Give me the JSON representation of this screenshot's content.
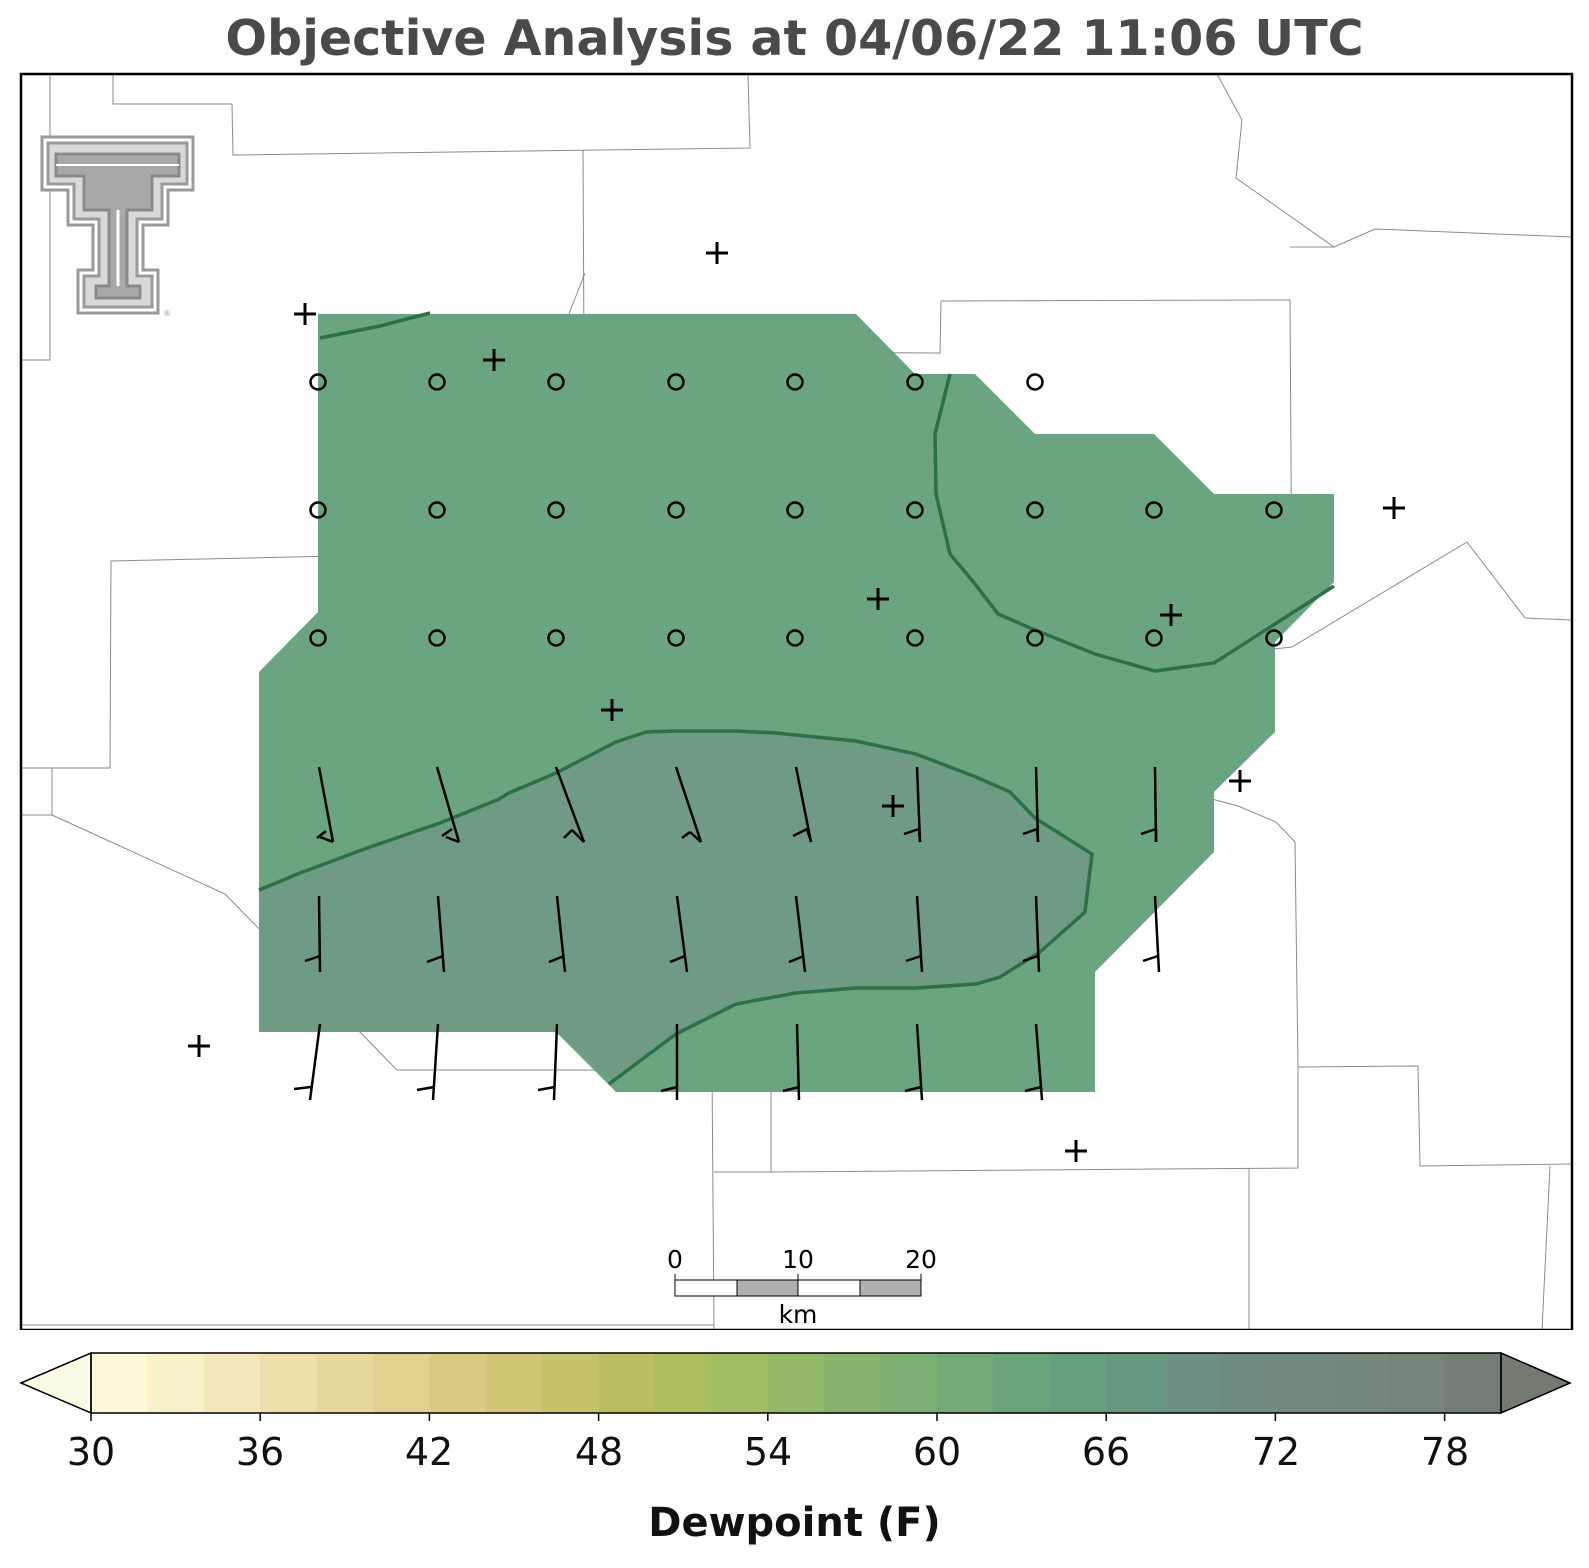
{
  "title": "Objective Analysis at 04/06/22 11:06 UTC",
  "colorbar": {
    "label": "Dewpoint (F)",
    "ticks": [
      "30",
      "36",
      "42",
      "48",
      "54",
      "60",
      "66",
      "72",
      "78"
    ],
    "min": 30,
    "max": 80,
    "step": 2,
    "colors": [
      "#fdf9d8",
      "#f8f1c9",
      "#f3e8ba",
      "#ede0ab",
      "#e7d89d",
      "#e1d090",
      "#d9ca82",
      "#d0c676",
      "#c5c26c",
      "#b9c063",
      "#acbf5c",
      "#a0bd62",
      "#94b868",
      "#88b36e",
      "#7eaf74",
      "#74aa78",
      "#6aa47b",
      "#659f7d",
      "#669880",
      "#6b9282",
      "#708c80",
      "#758a7e",
      "#76887c",
      "#76847a",
      "#747e74"
    ]
  },
  "scale_bar": {
    "labels": [
      "0",
      "10",
      "20"
    ],
    "unit": "km"
  },
  "dewpoint_field": {
    "fill_color": "#6ba480",
    "inner_region_color": "#6f9a84",
    "contour_color": "#2c7047"
  },
  "logo": {
    "name": "Texas Tech double-T logo"
  },
  "calm_wind_marker": "circle",
  "station_marker": "+"
}
